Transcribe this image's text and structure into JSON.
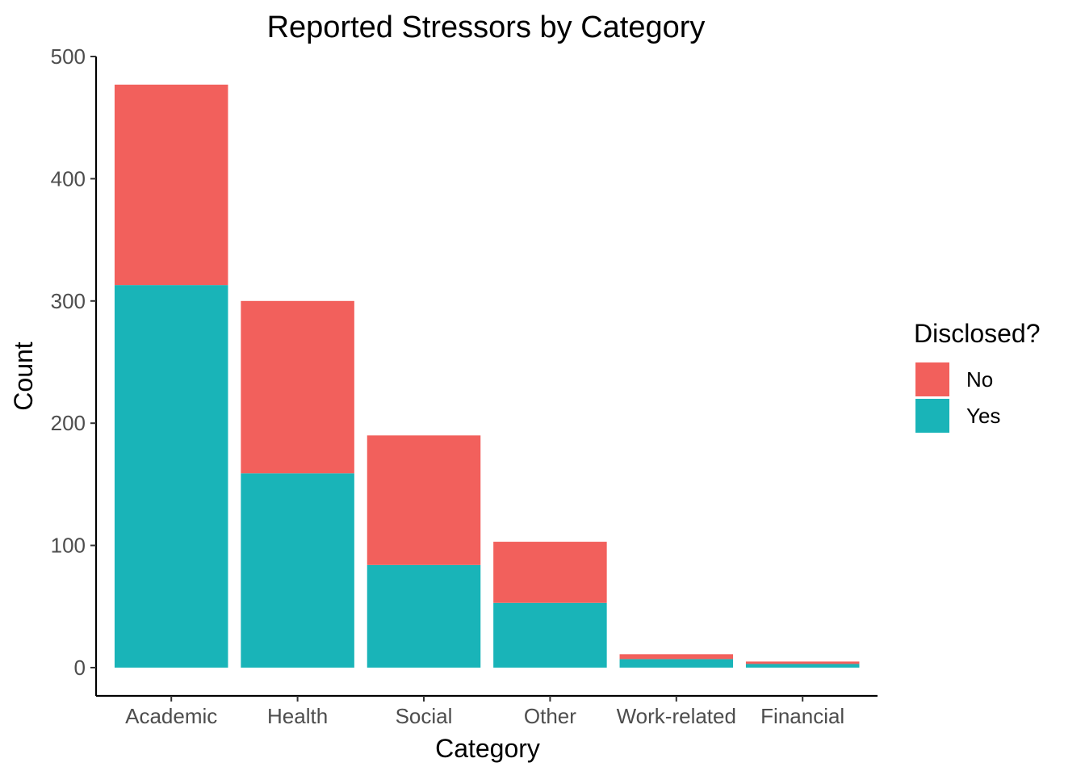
{
  "chart_data": {
    "type": "bar",
    "stacked": true,
    "title": "Reported Stressors by Category",
    "xlabel": "Category",
    "ylabel": "Count",
    "categories": [
      "Academic",
      "Health",
      "Social",
      "Other",
      "Work-related",
      "Financial"
    ],
    "series": [
      {
        "name": "Yes",
        "color": "#19b4b8",
        "values": [
          313,
          159,
          84,
          53,
          7,
          3
        ]
      },
      {
        "name": "No",
        "color": "#f2605c",
        "values": [
          164,
          141,
          106,
          50,
          4,
          2
        ]
      }
    ],
    "ylim": [
      0,
      500
    ],
    "yticks": [
      0,
      100,
      200,
      300,
      400,
      500
    ],
    "grid": false,
    "legend": {
      "title": "Disclosed?",
      "placement": "right",
      "entries": [
        {
          "label": "No",
          "color": "#f2605c"
        },
        {
          "label": "Yes",
          "color": "#19b4b8"
        }
      ]
    }
  }
}
